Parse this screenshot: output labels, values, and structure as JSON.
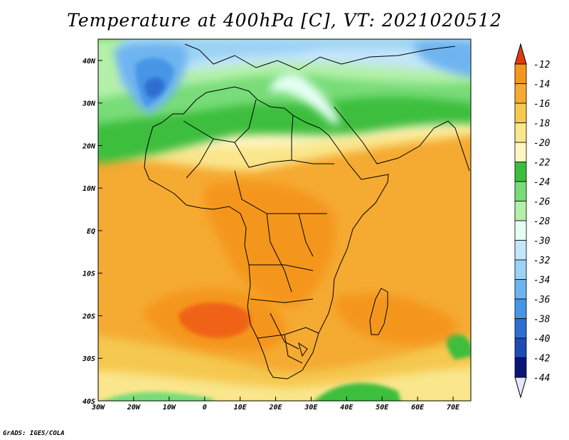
{
  "title": "Temperature at 400hPa [C], VT: 2021020512",
  "credit": "GrADS: IGES/COLA",
  "map": {
    "lon_range": [
      -30,
      75
    ],
    "lat_range": [
      -40,
      45
    ],
    "lon_ticks": [
      {
        "v": -30,
        "label": "30W"
      },
      {
        "v": -20,
        "label": "20W"
      },
      {
        "v": -10,
        "label": "10W"
      },
      {
        "v": 0,
        "label": "0"
      },
      {
        "v": 10,
        "label": "10E"
      },
      {
        "v": 20,
        "label": "20E"
      },
      {
        "v": 30,
        "label": "30E"
      },
      {
        "v": 40,
        "label": "40E"
      },
      {
        "v": 50,
        "label": "50E"
      },
      {
        "v": 60,
        "label": "60E"
      },
      {
        "v": 70,
        "label": "70E"
      }
    ],
    "lat_ticks": [
      {
        "v": 40,
        "label": "40N"
      },
      {
        "v": 30,
        "label": "30N"
      },
      {
        "v": 20,
        "label": "20N"
      },
      {
        "v": 10,
        "label": "10N"
      },
      {
        "v": 0,
        "label": "EQ"
      },
      {
        "v": -10,
        "label": "10S"
      },
      {
        "v": -20,
        "label": "20S"
      },
      {
        "v": -30,
        "label": "30S"
      },
      {
        "v": -40,
        "label": "40S"
      }
    ]
  },
  "colorbar": {
    "bins": [
      {
        "label": "-12",
        "color": "#f06414"
      },
      {
        "label": "-14",
        "color": "#f5961e"
      },
      {
        "label": "-16",
        "color": "#f5aa32"
      },
      {
        "label": "-18",
        "color": "#f5c850"
      },
      {
        "label": "-20",
        "color": "#fae68c"
      },
      {
        "label": "-22",
        "color": "#fff5c3"
      },
      {
        "label": "-24",
        "color": "#3cbe3c"
      },
      {
        "label": "-26",
        "color": "#78dc78"
      },
      {
        "label": "-28",
        "color": "#b4f0aa"
      },
      {
        "label": "-30",
        "color": "#e6fff5"
      },
      {
        "label": "-32",
        "color": "#c3e6fa"
      },
      {
        "label": "-34",
        "color": "#9bd2f5"
      },
      {
        "label": "-36",
        "color": "#6eb4f0"
      },
      {
        "label": "-38",
        "color": "#4696e6"
      },
      {
        "label": "-40",
        "color": "#2d6ed2"
      },
      {
        "label": "-42",
        "color": "#1e4bb4"
      },
      {
        "label": "-44",
        "color": "#0a1478"
      }
    ],
    "top_triangle_color": "#e03c0a",
    "bottom_triangle_color": "#e6e6ff"
  }
}
